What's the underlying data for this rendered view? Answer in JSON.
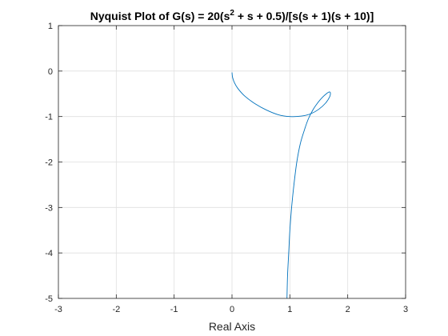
{
  "chart_data": {
    "type": "line",
    "title": {
      "prefix": "Nyquist Plot of G(s) = 20(s",
      "superscript": "2",
      "suffix": " + s + 0.5)/[s(s + 1)(s + 10)]"
    },
    "xlabel": "Real Axis",
    "ylabel": "",
    "xlim": [
      -3,
      3
    ],
    "ylim": [
      -5,
      1
    ],
    "xticks": [
      -3,
      -2,
      -1,
      0,
      1,
      2,
      3
    ],
    "yticks": [
      1,
      0,
      -1,
      -2,
      -3,
      -4,
      -5
    ],
    "grid": true,
    "series": [
      {
        "color": "#0072BD",
        "x": [
          0.95,
          0.96,
          0.98,
          1.0,
          1.03,
          1.07,
          1.12,
          1.18,
          1.25,
          1.32,
          1.4,
          1.48,
          1.56,
          1.63,
          1.68,
          1.7,
          1.69,
          1.62,
          1.5,
          1.36,
          1.2,
          1.0,
          0.8,
          0.6,
          0.4,
          0.22,
          0.1,
          0.04,
          0.01,
          0.0
        ],
        "y": [
          -5.0,
          -4.5,
          -4.0,
          -3.5,
          -3.0,
          -2.5,
          -2.0,
          -1.6,
          -1.3,
          -1.05,
          -0.85,
          -0.7,
          -0.58,
          -0.5,
          -0.46,
          -0.48,
          -0.56,
          -0.7,
          -0.84,
          -0.94,
          -0.99,
          -1.0,
          -0.96,
          -0.86,
          -0.72,
          -0.55,
          -0.38,
          -0.25,
          -0.14,
          -0.03
        ]
      }
    ]
  }
}
